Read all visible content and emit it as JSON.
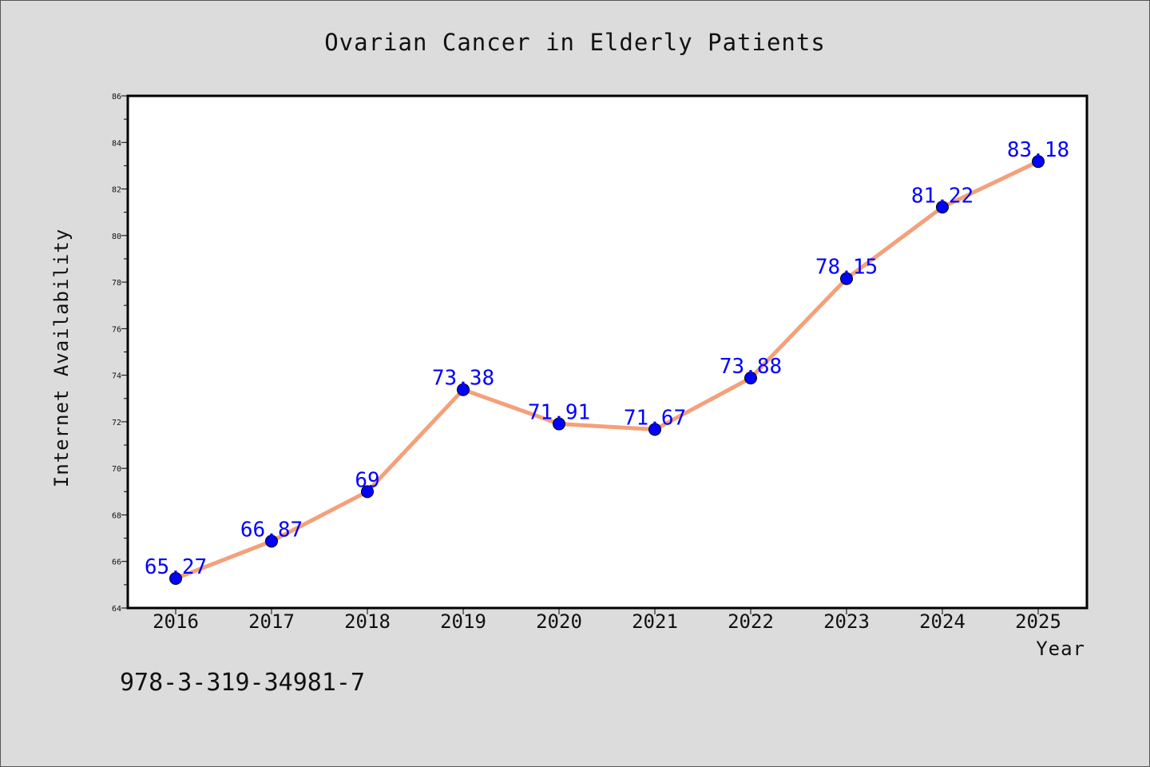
{
  "chart_data": {
    "type": "line",
    "title": "Ovarian Cancer in Elderly Patients",
    "xlabel": "Year",
    "ylabel": "Internet Availability",
    "categories": [
      "2016",
      "2017",
      "2018",
      "2019",
      "2020",
      "2021",
      "2022",
      "2023",
      "2024",
      "2025"
    ],
    "values": [
      65.27,
      66.87,
      69,
      73.38,
      71.91,
      71.67,
      73.88,
      78.15,
      81.22,
      83.18
    ],
    "data_labels": [
      "65.27",
      "66.87",
      "69",
      "73.38",
      "71.91",
      "71.67",
      "73.88",
      "78.15",
      "81.22",
      "83.18"
    ],
    "ylim": [
      64,
      86
    ],
    "yticks": [
      "64",
      "66",
      "68",
      "70",
      "72",
      "74",
      "76",
      "78",
      "80",
      "82",
      "84",
      "86"
    ],
    "grid": false,
    "line_color": "#f4a07a",
    "marker_color": "#0000ff",
    "label_color": "#0000ff"
  },
  "footnote": "978-3-319-34981-7"
}
